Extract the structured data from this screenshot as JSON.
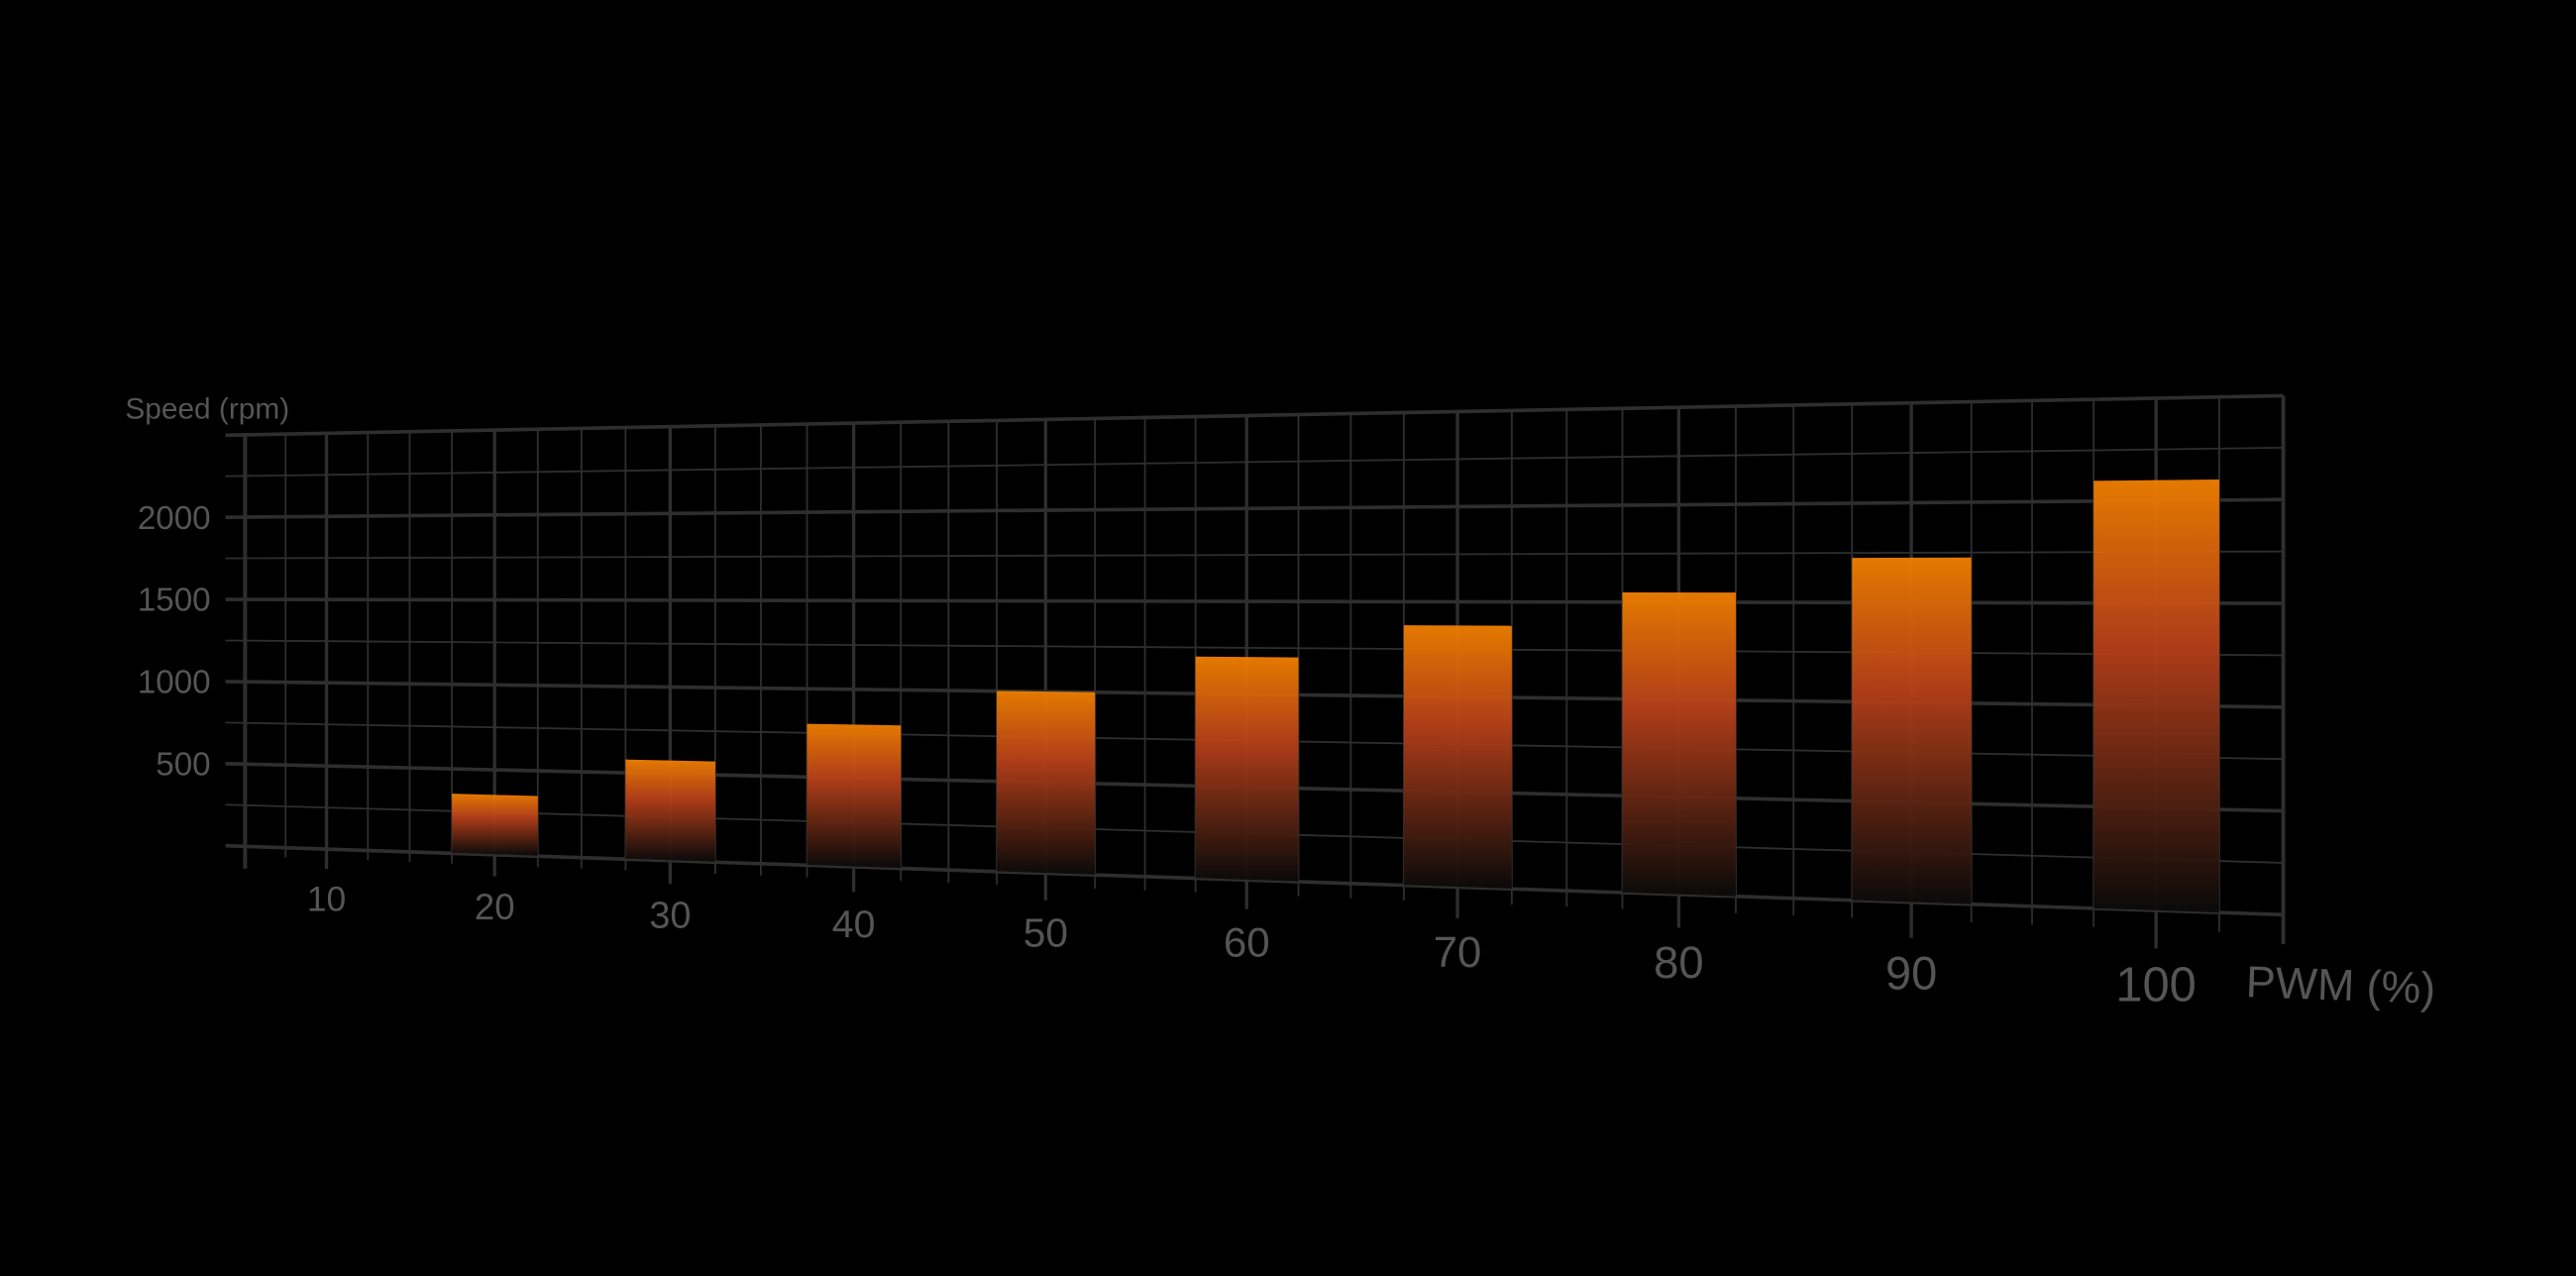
{
  "chart_data": {
    "type": "bar",
    "xlabel": "PWM (%)",
    "ylabel": "Speed (rpm)",
    "categories": [
      10,
      20,
      30,
      40,
      50,
      60,
      70,
      80,
      90,
      100
    ],
    "values": [
      null,
      350,
      575,
      800,
      1000,
      1200,
      1375,
      1550,
      1725,
      2100
    ],
    "x_tick_labels": [
      "10",
      "20",
      "30",
      "40",
      "50",
      "60",
      "70",
      "80",
      "90",
      "100"
    ],
    "y_tick_labels": [
      "500",
      "1000",
      "1500",
      "2000"
    ],
    "y_ticks": [
      500,
      1000,
      1500,
      2000
    ],
    "xlim": [
      5,
      105
    ],
    "ylim": [
      0,
      2500
    ],
    "grid": true,
    "minor_grid_step_x": 2.5,
    "minor_grid_step_y": 250,
    "style": "3D perspective",
    "colors": {
      "background": "#000000",
      "bar_top": "#f08000",
      "bar_mid": "#b8401a",
      "bar_bottom": "#0a0a0a",
      "grid": "#2e2e2e",
      "text": "#555555"
    }
  }
}
